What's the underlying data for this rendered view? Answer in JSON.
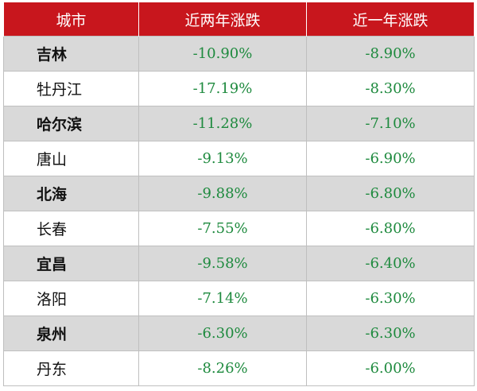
{
  "table": {
    "headers": [
      "城市",
      "近两年涨跌",
      "近一年涨跌"
    ],
    "rows": [
      {
        "city": "吉林",
        "two_year": "-10.90%",
        "one_year": "-8.90%"
      },
      {
        "city": "牡丹江",
        "two_year": "-17.19%",
        "one_year": "-8.30%"
      },
      {
        "city": "哈尔滨",
        "two_year": "-11.28%",
        "one_year": "-7.10%"
      },
      {
        "city": "唐山",
        "two_year": "-9.13%",
        "one_year": "-6.90%"
      },
      {
        "city": "北海",
        "two_year": "-9.88%",
        "one_year": "-6.80%"
      },
      {
        "city": "长春",
        "two_year": "-7.55%",
        "one_year": "-6.80%"
      },
      {
        "city": "宜昌",
        "two_year": "-9.58%",
        "one_year": "-6.40%"
      },
      {
        "city": "洛阳",
        "two_year": "-7.14%",
        "one_year": "-6.30%"
      },
      {
        "city": "泉州",
        "two_year": "-6.30%",
        "one_year": "-6.30%"
      },
      {
        "city": "丹东",
        "two_year": "-8.26%",
        "one_year": "-6.00%"
      }
    ]
  },
  "colors": {
    "header_bg": "#c8161d",
    "header_text": "#ffffff",
    "value_text": "#1e8a3e",
    "shaded_row": "#d9d9d9"
  }
}
